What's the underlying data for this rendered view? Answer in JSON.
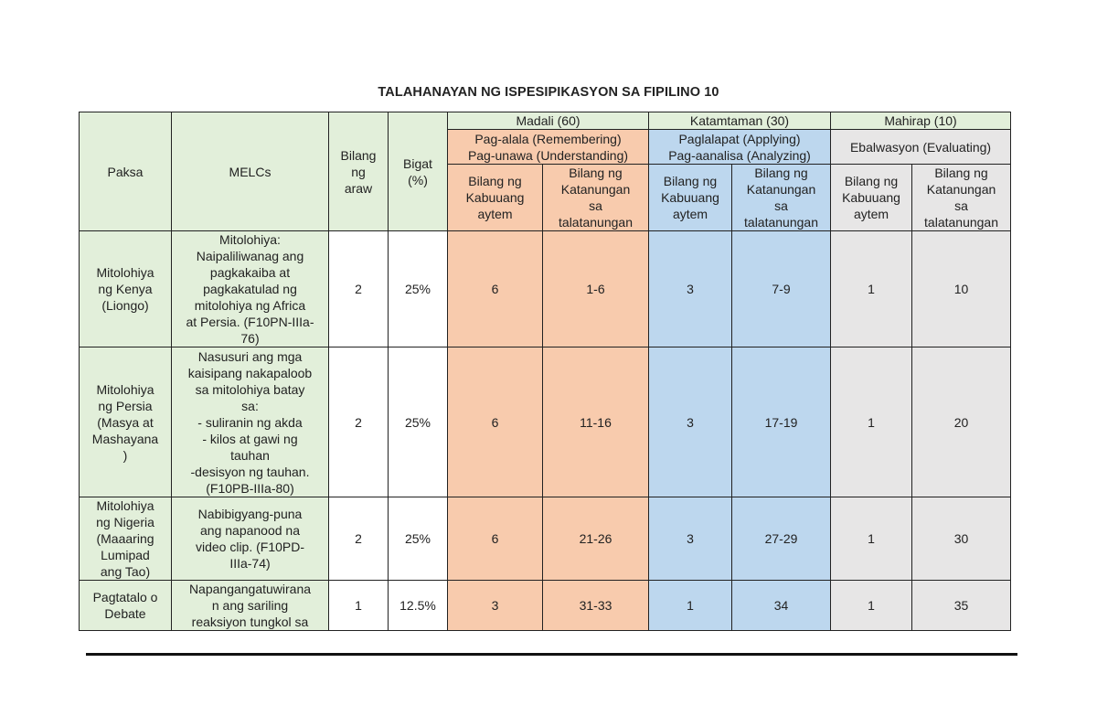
{
  "title": "TALAHANAYAN NG ISPESIPIKASYON SA FIPILINO 10",
  "header": {
    "paksa": "Paksa",
    "melcs": "MELCs",
    "bilang_araw": "Bilang\nng\naraw",
    "bigat": "Bigat\n(%)",
    "madali": "Madali (60)",
    "katamtaman": "Katamtaman (30)",
    "mahirap": "Mahirap (10)",
    "madali_sub": "Pag-alala (Remembering)\nPag-unawa (Understanding)",
    "katamtaman_sub": "Paglalapat (Applying)\nPag-aanalisa (Analyzing)",
    "mahirap_sub": "Ebalwasyon (Evaluating)",
    "kabuuang": "Bilang ng\nKabuuang\naytem",
    "katanungan": "Bilang ng\nKatanungan\nsa\ntalatanungan"
  },
  "rows": [
    {
      "paksa": "Mitolohiya\nng Kenya\n(Liongo)",
      "melc": "Mitolohiya:\nNaipaliliwanag ang\npagkakaiba at\npagkakatulad ng\nmitolohiya ng Africa\nat Persia. (F10PN-IIIa-\n76)",
      "araw": "2",
      "bigat": "25%",
      "m_k": "6",
      "m_q": "1-6",
      "k_k": "3",
      "k_q": "7-9",
      "h_k": "1",
      "h_q": "10"
    },
    {
      "paksa": "Mitolohiya\nng Persia\n(Masya at\nMashayana\n)",
      "melc": "Nasusuri ang mga\nkaisipang nakapaloob\nsa mitolohiya batay\nsa:\n- suliranin ng akda\n- kilos at gawi ng\ntauhan\n-desisyon ng tauhan.\n(F10PB-IIIa-80)",
      "araw": "2",
      "bigat": "25%",
      "m_k": "6",
      "m_q": "11-16",
      "k_k": "3",
      "k_q": "17-19",
      "h_k": "1",
      "h_q": "20"
    },
    {
      "paksa": "Mitolohiya\nng Nigeria\n(Maaaring\nLumipad\nang Tao)",
      "melc": "Nabibigyang-puna\nang napanood na\nvideo clip. (F10PD-\nIIIa-74)",
      "araw": "2",
      "bigat": "25%",
      "m_k": "6",
      "m_q": "21-26",
      "k_k": "3",
      "k_q": "27-29",
      "h_k": "1",
      "h_q": "30"
    },
    {
      "paksa": "Pagtatalo o\nDebate",
      "melc": "Napangangatuwirana\nn ang sariling\nreaksiyon tungkol sa",
      "araw": "1",
      "bigat": "12.5%",
      "m_k": "3",
      "m_q": "31-33",
      "k_k": "1",
      "k_q": "34",
      "h_k": "1",
      "h_q": "35"
    }
  ]
}
